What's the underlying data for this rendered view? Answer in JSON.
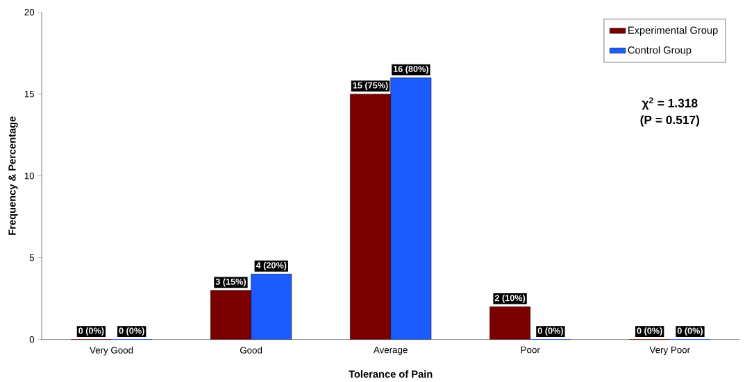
{
  "chart_data": {
    "type": "bar",
    "xlabel": "Tolerance of Pain",
    "ylabel": "Frequency & Percentage",
    "categories": [
      "Very Good",
      "Good",
      "Average",
      "Poor",
      "Very Poor"
    ],
    "series": [
      {
        "name": "Experimental Group",
        "color": "#7a0000",
        "values": [
          0,
          3,
          15,
          2,
          0
        ],
        "value_labels": [
          "0 (0%)",
          "3 (15%)",
          "15 (75%)",
          "2 (10%)",
          "0 (0%)"
        ]
      },
      {
        "name": "Control Group",
        "color": "#1a5cff",
        "values": [
          0,
          4,
          16,
          0,
          0
        ],
        "value_labels": [
          "0 (0%)",
          "4 (20%)",
          "16 (80%)",
          "0 (0%)",
          "0 (0%)"
        ]
      }
    ],
    "ylim": [
      0,
      20
    ],
    "yticks": [
      0,
      5,
      10,
      15,
      20
    ],
    "grid": false,
    "legend": "top right",
    "annotations": [
      "**χ$^{2}$ = 1.318**",
      "**(P = 0.517)**"
    ]
  }
}
